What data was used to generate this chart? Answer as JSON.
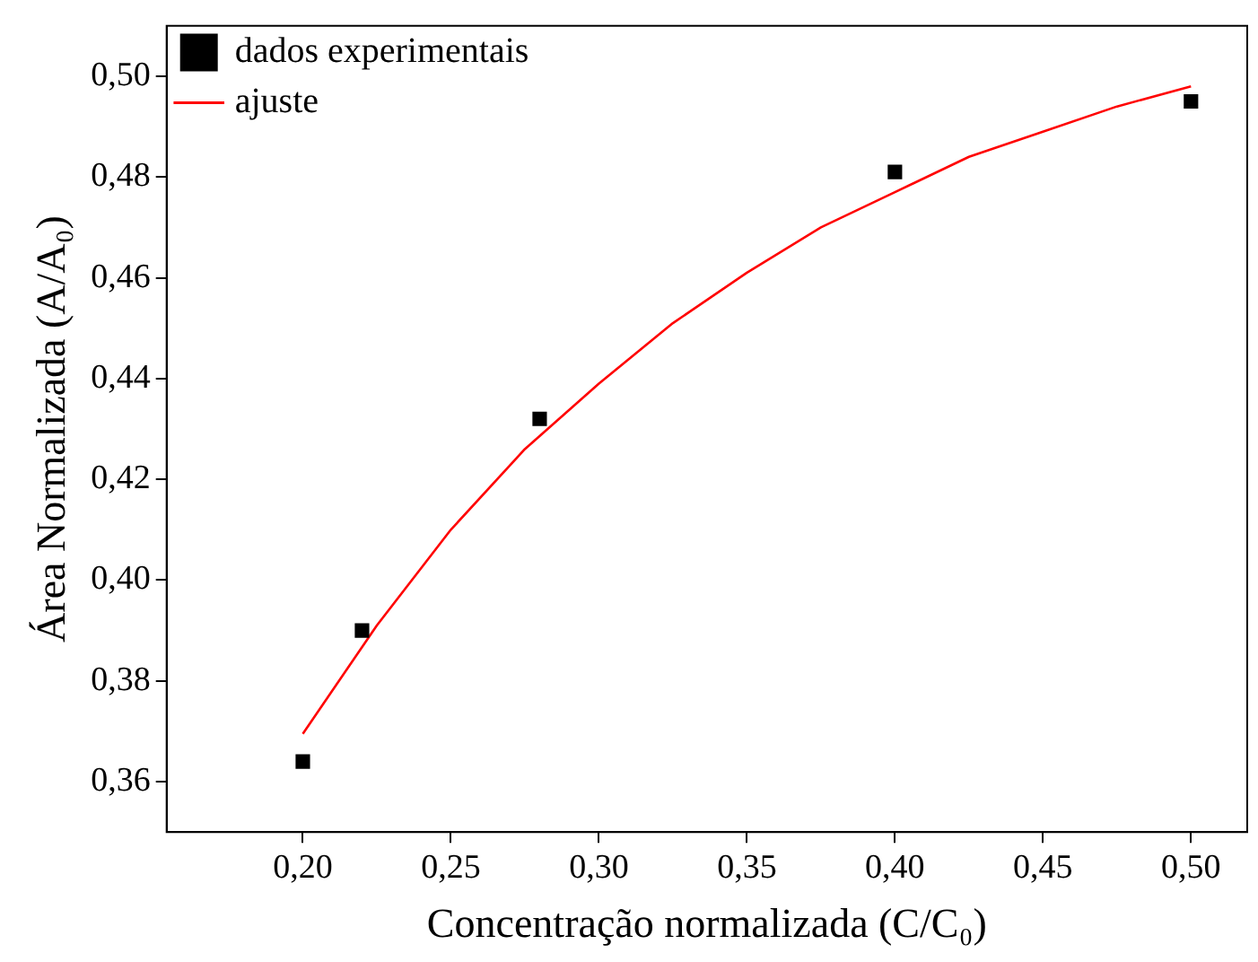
{
  "chart_data": {
    "type": "scatter",
    "xlabel": "Concentração normalizada (C/C₀)",
    "ylabel": "Área Normalizada (A/A₀)",
    "xlim": [
      0.154,
      0.519
    ],
    "ylim": [
      0.35,
      0.51
    ],
    "xticks": [
      {
        "value": 0.2,
        "label": "0,20"
      },
      {
        "value": 0.25,
        "label": "0,25"
      },
      {
        "value": 0.3,
        "label": "0,30"
      },
      {
        "value": 0.35,
        "label": "0,35"
      },
      {
        "value": 0.4,
        "label": "0,40"
      },
      {
        "value": 0.45,
        "label": "0,45"
      },
      {
        "value": 0.5,
        "label": "0,50"
      }
    ],
    "yticks": [
      {
        "value": 0.36,
        "label": "0,36"
      },
      {
        "value": 0.38,
        "label": "0,38"
      },
      {
        "value": 0.4,
        "label": "0,40"
      },
      {
        "value": 0.42,
        "label": "0,42"
      },
      {
        "value": 0.44,
        "label": "0,44"
      },
      {
        "value": 0.46,
        "label": "0,46"
      },
      {
        "value": 0.48,
        "label": "0,48"
      },
      {
        "value": 0.5,
        "label": "0,50"
      }
    ],
    "grid": false,
    "legend": "top left",
    "marker": "square",
    "series": [
      {
        "name": "dados experimentais",
        "color": "#000000",
        "x": [
          0.2,
          0.22,
          0.28,
          0.4,
          0.5
        ],
        "values": [
          0.364,
          0.39,
          0.432,
          0.481,
          0.495
        ]
      },
      {
        "name": "ajuste",
        "type": "line",
        "color": "#ff0000",
        "marker": "none",
        "x": [
          0.2,
          0.225,
          0.25,
          0.275,
          0.3,
          0.325,
          0.35,
          0.375,
          0.4,
          0.425,
          0.45,
          0.475,
          0.5
        ],
        "values": [
          0.3695,
          0.391,
          0.41,
          0.426,
          0.439,
          0.451,
          0.461,
          0.47,
          0.477,
          0.484,
          0.489,
          0.494,
          0.498
        ]
      }
    ]
  }
}
